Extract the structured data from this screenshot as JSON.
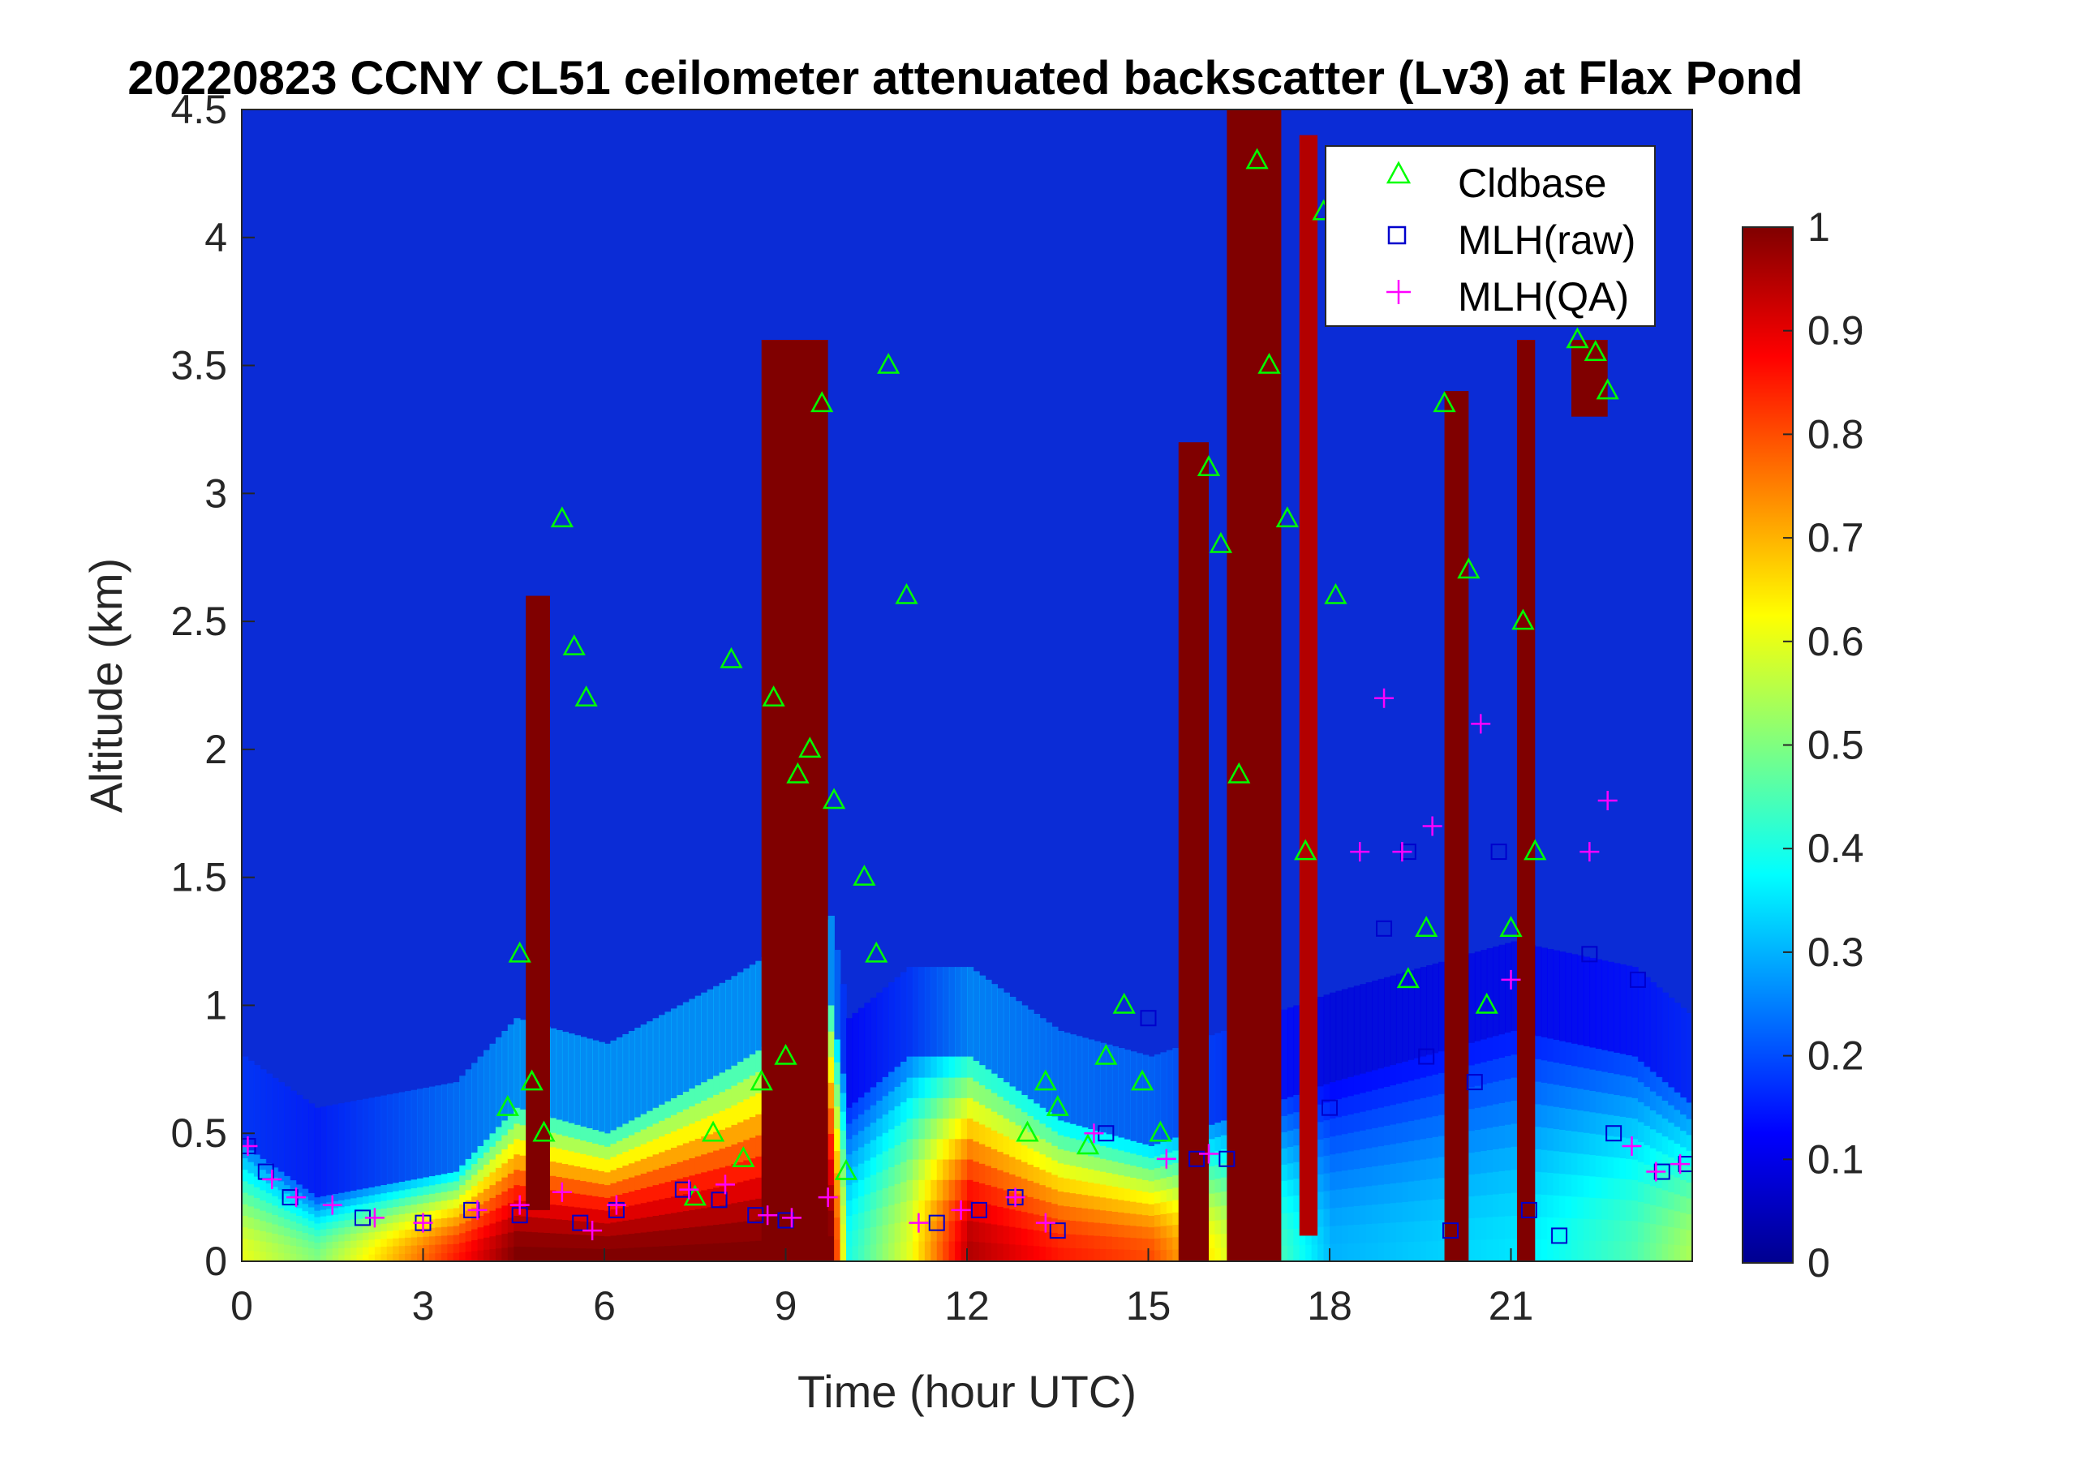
{
  "chart_data": {
    "type": "heatmap",
    "title": "20220823 CCNY CL51 ceilometer attenuated backscatter (Lv3) at Flax Pond",
    "xlabel": "Time (hour UTC)",
    "ylabel": "Altitude (km)",
    "xlim": [
      0,
      24
    ],
    "ylim": [
      0,
      4.5
    ],
    "x_ticks": [
      "0",
      "3",
      "6",
      "9",
      "12",
      "15",
      "18",
      "21"
    ],
    "y_ticks": [
      "0",
      "0.5",
      "1",
      "1.5",
      "2",
      "2.5",
      "3",
      "3.5",
      "4",
      "4.5"
    ],
    "colorbar": {
      "colormap": "jet",
      "range": [
        0,
        1
      ],
      "ticks": [
        "0",
        "0.1",
        "0.2",
        "0.3",
        "0.4",
        "0.5",
        "0.6",
        "0.7",
        "0.8",
        "0.9",
        "1"
      ]
    },
    "legend": {
      "placement": "top-right",
      "entries": [
        {
          "label": "Cldbase",
          "marker": "triangle",
          "color": "#00ff00"
        },
        {
          "label": "MLH(raw)",
          "marker": "square",
          "color": "#0000cc"
        },
        {
          "label": "MLH(QA)",
          "marker": "plus",
          "color": "#ff00ff"
        }
      ]
    },
    "background_value": 0.05,
    "boundary_layer": [
      {
        "x": 0,
        "top": 0.45,
        "value": 0.6
      },
      {
        "x": 1.2,
        "top": 0.25,
        "value": 0.5
      },
      {
        "x": 3.5,
        "top": 0.35,
        "value": 0.85
      },
      {
        "x": 4.5,
        "top": 0.6,
        "value": 1.0
      },
      {
        "x": 6,
        "top": 0.5,
        "value": 1.0
      },
      {
        "x": 8,
        "top": 0.75,
        "value": 1.0
      },
      {
        "x": 9.7,
        "top": 1.0,
        "value": 1.0
      },
      {
        "x": 10,
        "top": 0.6,
        "value": 0.4
      },
      {
        "x": 11,
        "top": 0.8,
        "value": 0.6
      },
      {
        "x": 12,
        "top": 0.8,
        "value": 0.95
      },
      {
        "x": 13.5,
        "top": 0.55,
        "value": 0.85
      },
      {
        "x": 15,
        "top": 0.45,
        "value": 0.8
      },
      {
        "x": 18,
        "top": 0.7,
        "value": 0.3
      },
      {
        "x": 21,
        "top": 0.9,
        "value": 0.35
      },
      {
        "x": 23,
        "top": 0.8,
        "value": 0.45
      },
      {
        "x": 24,
        "top": 0.6,
        "value": 0.55
      }
    ],
    "cloud_columns": [
      {
        "x0": 4.7,
        "x1": 5.1,
        "ybot": 0.2,
        "ytop": 2.6,
        "value": 1.0
      },
      {
        "x0": 8.6,
        "x1": 9.7,
        "ybot": 0.0,
        "ytop": 3.6,
        "value": 1.0
      },
      {
        "x0": 15.5,
        "x1": 16.0,
        "ybot": 0.0,
        "ytop": 3.2,
        "value": 1.0
      },
      {
        "x0": 16.3,
        "x1": 17.2,
        "ybot": 0.0,
        "ytop": 4.5,
        "value": 1.0
      },
      {
        "x0": 17.5,
        "x1": 17.8,
        "ybot": 0.1,
        "ytop": 4.4,
        "value": 0.95
      },
      {
        "x0": 19.9,
        "x1": 20.3,
        "ybot": 0.0,
        "ytop": 3.4,
        "value": 1.0
      },
      {
        "x0": 21.1,
        "x1": 21.4,
        "ybot": 0.0,
        "ytop": 3.6,
        "value": 1.0
      },
      {
        "x0": 22.0,
        "x1": 22.6,
        "ybot": 3.3,
        "ytop": 3.6,
        "value": 1.0
      }
    ],
    "cldbase": {
      "x": [
        4.4,
        4.6,
        4.8,
        5.0,
        5.3,
        5.5,
        5.7,
        7.5,
        7.8,
        8.1,
        8.3,
        8.6,
        8.8,
        9.0,
        9.2,
        9.4,
        9.6,
        9.8,
        10.0,
        10.3,
        10.5,
        10.7,
        11.0,
        13.0,
        13.3,
        13.5,
        14.0,
        14.3,
        14.6,
        14.9,
        15.2,
        16.0,
        16.2,
        16.5,
        16.8,
        17.0,
        17.3,
        17.6,
        17.9,
        18.1,
        19.3,
        19.6,
        19.9,
        20.3,
        20.6,
        21.0,
        21.2,
        21.4,
        22.1,
        22.4,
        22.6
      ],
      "y": [
        0.6,
        1.2,
        0.7,
        0.5,
        2.9,
        2.4,
        2.2,
        0.25,
        0.5,
        2.35,
        0.4,
        0.7,
        2.2,
        0.8,
        1.9,
        2.0,
        3.35,
        1.8,
        0.35,
        1.5,
        1.2,
        3.5,
        2.6,
        0.5,
        0.7,
        0.6,
        0.45,
        0.8,
        1.0,
        0.7,
        0.5,
        3.1,
        2.8,
        1.9,
        4.3,
        3.5,
        2.9,
        1.6,
        4.1,
        2.6,
        1.1,
        1.3,
        3.35,
        2.7,
        1.0,
        1.3,
        2.5,
        1.6,
        3.6,
        3.55,
        3.4
      ]
    },
    "mlh_raw": {
      "x": [
        0.1,
        0.4,
        0.8,
        2.0,
        3.0,
        3.8,
        4.6,
        5.6,
        6.2,
        7.3,
        7.9,
        8.5,
        9.0,
        11.5,
        12.2,
        12.8,
        13.5,
        14.3,
        15.0,
        15.8,
        16.3,
        18.0,
        18.9,
        19.3,
        19.6,
        20.0,
        20.4,
        20.8,
        21.3,
        21.8,
        22.3,
        22.7,
        23.1,
        23.5,
        23.9
      ],
      "y": [
        0.45,
        0.35,
        0.25,
        0.17,
        0.15,
        0.2,
        0.18,
        0.15,
        0.2,
        0.28,
        0.24,
        0.18,
        0.16,
        0.15,
        0.2,
        0.25,
        0.12,
        0.5,
        0.95,
        0.4,
        0.4,
        0.6,
        1.3,
        1.6,
        0.8,
        0.12,
        0.7,
        1.6,
        0.2,
        0.1,
        1.2,
        0.5,
        1.1,
        0.35,
        0.38
      ]
    },
    "mlh_qa": {
      "x": [
        0.1,
        0.5,
        0.9,
        1.5,
        2.2,
        3.0,
        3.9,
        4.6,
        5.3,
        5.8,
        6.2,
        7.4,
        8.0,
        8.7,
        9.1,
        9.7,
        11.2,
        11.9,
        12.8,
        13.3,
        14.1,
        15.3,
        16.0,
        18.5,
        18.9,
        19.2,
        19.7,
        20.5,
        21.0,
        22.3,
        22.6,
        23.0,
        23.4,
        23.8
      ],
      "y": [
        0.45,
        0.32,
        0.25,
        0.22,
        0.17,
        0.15,
        0.2,
        0.22,
        0.27,
        0.12,
        0.22,
        0.28,
        0.3,
        0.18,
        0.17,
        0.25,
        0.15,
        0.2,
        0.25,
        0.15,
        0.5,
        0.4,
        0.42,
        1.6,
        2.2,
        1.6,
        1.7,
        2.1,
        1.1,
        1.6,
        1.8,
        0.45,
        0.35,
        0.38
      ]
    }
  }
}
